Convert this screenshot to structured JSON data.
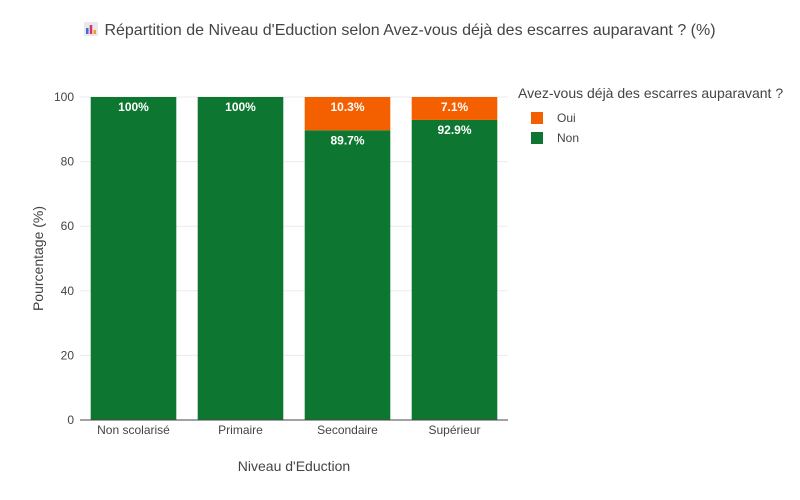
{
  "chart_data": {
    "type": "bar",
    "stacked": true,
    "title": "Répartition de Niveau d'Eduction selon Avez-vous déjà des escarres auparavant ? (%)",
    "title_icon": "bar-chart-icon",
    "xlabel": "Niveau d'Eduction",
    "ylabel": "Pourcentage (%)",
    "ylim": [
      0,
      100
    ],
    "yticks": [
      0,
      20,
      40,
      60,
      80,
      100
    ],
    "categories": [
      "Non scolarisé",
      "Primaire",
      "Secondaire",
      "Supérieur"
    ],
    "series": [
      {
        "name": "Non",
        "color": "#0d7731",
        "values": [
          100,
          100,
          89.7,
          92.9
        ],
        "labels": [
          "100%",
          "100%",
          "89.7%",
          "92.9%"
        ]
      },
      {
        "name": "Oui",
        "color": "#f45f00",
        "values": [
          0,
          0,
          10.3,
          7.1
        ],
        "labels": [
          "",
          "",
          "10.3%",
          "7.1%"
        ]
      }
    ],
    "legend": {
      "title": "Avez-vous déjà des escarres auparavant ?",
      "placement": "top-right",
      "entries": [
        "Oui",
        "Non"
      ]
    },
    "grid": true
  }
}
